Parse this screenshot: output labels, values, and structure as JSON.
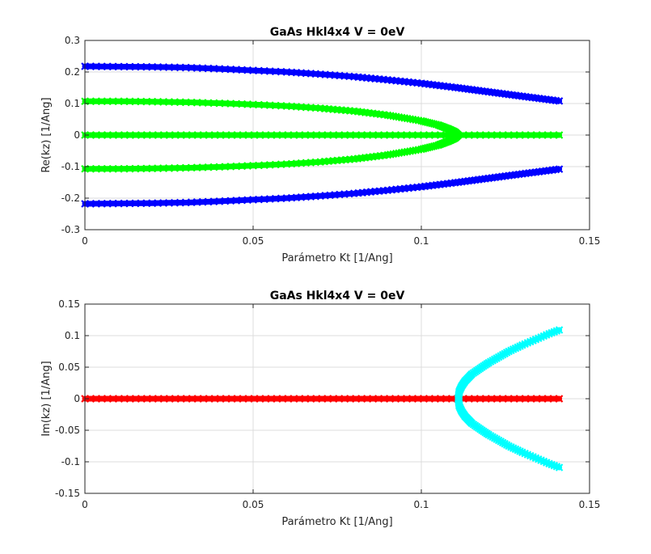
{
  "chart_data": [
    {
      "type": "scatter",
      "title": "GaAs Hkl4x4 V = 0eV",
      "xlabel": "Parámetro Kt [1/Ang]",
      "ylabel": "Re(kz) [1/Ang]",
      "xlim": [
        0,
        0.15
      ],
      "ylim": [
        -0.3,
        0.3
      ],
      "xticks": [
        "0",
        "0.05",
        "0.1",
        "0.15"
      ],
      "yticks": [
        "-0.3",
        "-0.2",
        "-0.1",
        "0",
        "0.1",
        "0.2",
        "0.3"
      ],
      "grid": true,
      "marker": "x",
      "series": [
        {
          "color": "#0000ff",
          "x": [
            0,
            0.01,
            0.02,
            0.03,
            0.04,
            0.05,
            0.06,
            0.07,
            0.08,
            0.09,
            0.1,
            0.11,
            0.12,
            0.13,
            0.141
          ],
          "y": [
            0.218,
            0.217,
            0.216,
            0.214,
            0.21,
            0.205,
            0.2,
            0.193,
            0.185,
            0.175,
            0.164,
            0.151,
            0.137,
            0.123,
            0.108
          ]
        },
        {
          "color": "#0000ff",
          "x": [
            0,
            0.01,
            0.02,
            0.03,
            0.04,
            0.05,
            0.06,
            0.07,
            0.08,
            0.09,
            0.1,
            0.11,
            0.12,
            0.13,
            0.141
          ],
          "y": [
            -0.218,
            -0.217,
            -0.216,
            -0.214,
            -0.21,
            -0.205,
            -0.2,
            -0.193,
            -0.185,
            -0.175,
            -0.164,
            -0.151,
            -0.137,
            -0.123,
            -0.108
          ]
        },
        {
          "color": "#00ff00",
          "x": [
            0,
            0.01,
            0.02,
            0.03,
            0.04,
            0.05,
            0.06,
            0.07,
            0.08,
            0.09,
            0.1,
            0.105,
            0.108,
            0.11,
            0.111
          ],
          "y": [
            0.107,
            0.107,
            0.106,
            0.104,
            0.101,
            0.097,
            0.092,
            0.085,
            0.076,
            0.063,
            0.045,
            0.032,
            0.02,
            0.01,
            0.0
          ]
        },
        {
          "color": "#00ff00",
          "x": [
            0,
            0.01,
            0.02,
            0.03,
            0.04,
            0.05,
            0.06,
            0.07,
            0.08,
            0.09,
            0.1,
            0.105,
            0.108,
            0.11,
            0.111
          ],
          "y": [
            -0.107,
            -0.107,
            -0.106,
            -0.104,
            -0.101,
            -0.097,
            -0.092,
            -0.085,
            -0.076,
            -0.063,
            -0.045,
            -0.032,
            -0.02,
            -0.01,
            0.0
          ]
        },
        {
          "color": "#00ff00",
          "x": [
            0,
            0.141
          ],
          "y": [
            0,
            0
          ]
        }
      ]
    },
    {
      "type": "scatter",
      "title": "GaAs Hkl4x4 V = 0eV",
      "xlabel": "Parámetro Kt [1/Ang]",
      "ylabel": "Im(kz) [1/Ang]",
      "xlim": [
        0,
        0.15
      ],
      "ylim": [
        -0.15,
        0.15
      ],
      "xticks": [
        "0",
        "0.05",
        "0.1",
        "0.15"
      ],
      "yticks": [
        "-0.15",
        "-0.1",
        "-0.05",
        "0",
        "0.05",
        "0.1",
        "0.15"
      ],
      "grid": true,
      "marker": "x",
      "series": [
        {
          "color": "#ff0000",
          "x": [
            0,
            0.141
          ],
          "y": [
            0,
            0
          ]
        },
        {
          "color": "#00ffff",
          "x": [
            0.111,
            0.1113,
            0.112,
            0.113,
            0.115,
            0.118,
            0.12,
            0.123,
            0.126,
            0.13,
            0.134,
            0.138,
            0.141
          ],
          "y": [
            0.0,
            0.012,
            0.02,
            0.028,
            0.039,
            0.05,
            0.057,
            0.066,
            0.075,
            0.085,
            0.094,
            0.103,
            0.109
          ]
        },
        {
          "color": "#00ffff",
          "x": [
            0.111,
            0.1113,
            0.112,
            0.113,
            0.115,
            0.118,
            0.12,
            0.123,
            0.126,
            0.13,
            0.134,
            0.138,
            0.141
          ],
          "y": [
            0.0,
            -0.012,
            -0.02,
            -0.028,
            -0.039,
            -0.05,
            -0.057,
            -0.066,
            -0.075,
            -0.085,
            -0.094,
            -0.103,
            -0.109
          ]
        }
      ]
    }
  ]
}
